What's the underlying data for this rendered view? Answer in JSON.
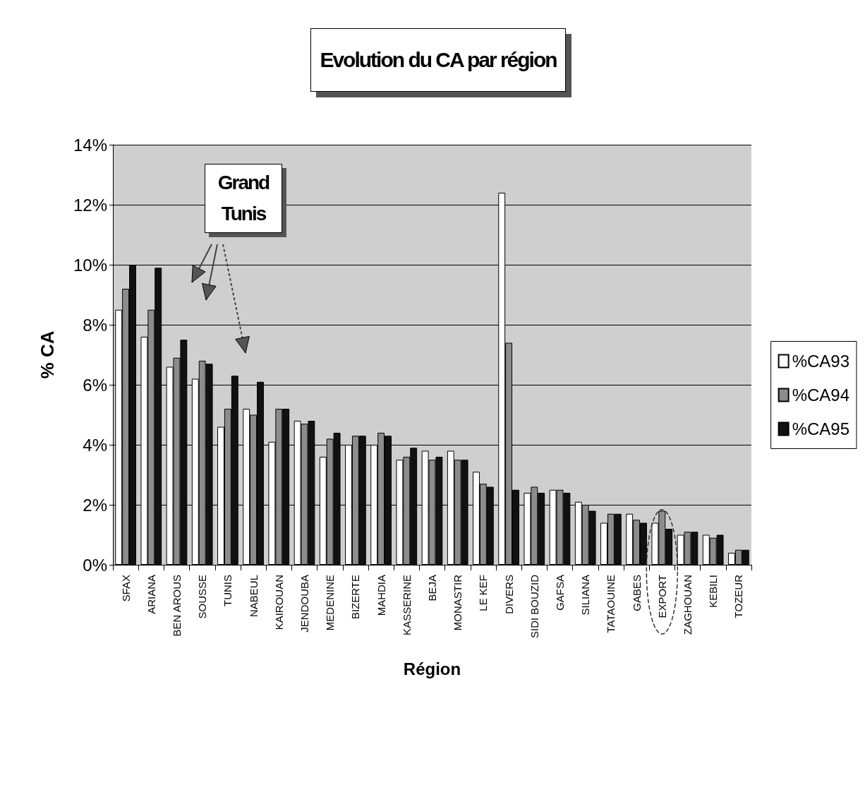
{
  "chart_data": {
    "type": "bar",
    "title": "Evolution du CA par région",
    "xlabel": "Région",
    "ylabel": "% CA",
    "categories": [
      "SFAX",
      "ARIANA",
      "BEN AROUS",
      "SOUSSE",
      "TUNIS",
      "NABEUL",
      "KAIROUAN",
      "JENDOUBA",
      "MEDENINE",
      "BIZERTE",
      "MAHDIA",
      "KASSERINE",
      "BEJA",
      "MONASTIR",
      "LE KEF",
      "DIVERS",
      "SIDI BOUZID",
      "GAFSA",
      "SILIANA",
      "TATAOUINE",
      "GABES",
      "EXPORT",
      "ZAGHOUAN",
      "KEBILI",
      "TOZEUR"
    ],
    "series": [
      {
        "name": "%CA93",
        "color": "#ffffff",
        "values": [
          8.5,
          7.6,
          6.6,
          6.2,
          4.6,
          5.2,
          4.1,
          4.8,
          3.6,
          4.0,
          4.0,
          3.5,
          3.8,
          3.8,
          3.1,
          12.4,
          2.4,
          2.5,
          2.1,
          1.4,
          1.7,
          1.4,
          1.0,
          1.0,
          0.4
        ]
      },
      {
        "name": "%CA94",
        "color": "#8c8c8c",
        "values": [
          9.2,
          8.5,
          6.9,
          6.8,
          5.2,
          5.0,
          5.2,
          4.7,
          4.2,
          4.3,
          4.4,
          3.6,
          3.5,
          3.5,
          2.7,
          7.4,
          2.6,
          2.5,
          2.0,
          1.7,
          1.5,
          1.8,
          1.1,
          0.9,
          0.5
        ]
      },
      {
        "name": "%CA95",
        "color": "#111111",
        "values": [
          10.0,
          9.9,
          7.5,
          6.7,
          6.3,
          6.1,
          5.2,
          4.8,
          4.4,
          4.3,
          4.3,
          3.9,
          3.6,
          3.5,
          2.6,
          2.5,
          2.4,
          2.4,
          1.8,
          1.7,
          1.4,
          1.2,
          1.1,
          1.0,
          0.5
        ]
      }
    ],
    "ylim": [
      0,
      14
    ],
    "yticks": [
      {
        "value": 0,
        "label": "0%"
      },
      {
        "value": 2,
        "label": "2%"
      },
      {
        "value": 4,
        "label": "4%"
      },
      {
        "value": 6,
        "label": "6%"
      },
      {
        "value": 8,
        "label": "8%"
      },
      {
        "value": 10,
        "label": "10%"
      },
      {
        "value": 12,
        "label": "12%"
      },
      {
        "value": 14,
        "label": "14%"
      }
    ],
    "grid": "y",
    "legend": "right",
    "annotations": [
      "Grand Tunis"
    ]
  }
}
